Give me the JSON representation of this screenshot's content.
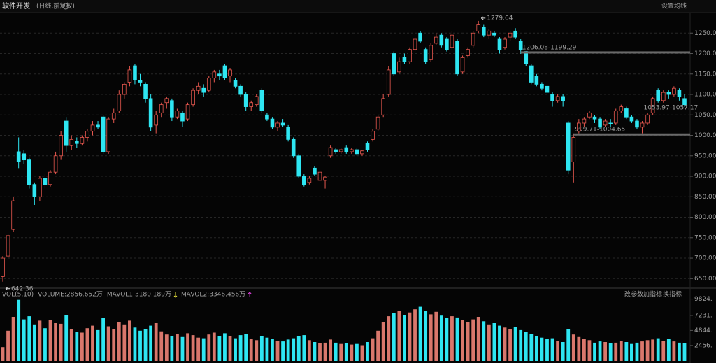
{
  "chart_data": [
    {
      "type": "candlestick",
      "title": "软件开发",
      "subtitle": "(日线,前复权)",
      "up_color": "#e8584f",
      "down_color": "#2ee6f2",
      "grid": true,
      "ylim": [
        630,
        1300
      ],
      "yticks": [
        {
          "value": 650,
          "label": "650.00"
        },
        {
          "value": 700,
          "label": "700.00"
        },
        {
          "value": 750,
          "label": "750.00"
        },
        {
          "value": 800,
          "label": "800.00"
        },
        {
          "value": 850,
          "label": "850.00"
        },
        {
          "value": 900,
          "label": "900.00"
        },
        {
          "value": 950,
          "label": "950.00"
        },
        {
          "value": 1000,
          "label": "1000.00"
        },
        {
          "value": 1050,
          "label": "1050.00"
        },
        {
          "value": 1100,
          "label": "1100.00"
        },
        {
          "value": 1150,
          "label": "1150.00"
        },
        {
          "value": 1200,
          "label": "1200.00"
        },
        {
          "value": 1250,
          "label": "1250.00"
        }
      ],
      "open": [
        655,
        705,
        770,
        960,
        955,
        940,
        880,
        850,
        895,
        880,
        910,
        950,
        1035,
        975,
        985,
        980,
        995,
        1010,
        1025,
        1045,
        960,
        1040,
        1060,
        1100,
        1130,
        1170,
        1135,
        1125,
        1090,
        1025,
        1055,
        1080,
        1085,
        1045,
        1055,
        1040,
        1075,
        1110,
        1115,
        1110,
        1140,
        1150,
        1170,
        1145,
        1135,
        1120,
        1100,
        1070,
        1075,
        1110,
        1050,
        1040,
        1020,
        1030,
        1020,
        990,
        950,
        900,
        885,
        920,
        890,
        890,
        950,
        965,
        960,
        970,
        960,
        965,
        955,
        980,
        990,
        1015,
        1050,
        1100,
        1200,
        1155,
        1190,
        1180,
        1210,
        1250,
        1210,
        1185,
        1225,
        1245,
        1235,
        1215,
        1230,
        1155,
        1195,
        1220,
        1255,
        1265,
        1245,
        1250,
        1235,
        1215,
        1240,
        1255,
        1230,
        1205,
        1170,
        1145,
        1125,
        1120,
        1100,
        1085,
        1095,
        1030,
        935,
        1010,
        1030,
        1045,
        1045,
        1040,
        1025,
        1030,
        1030,
        1060,
        1065,
        1045,
        1035,
        1020,
        1030,
        1055,
        1110,
        1085,
        1105,
        1100,
        1110,
        1090
      ],
      "high": [
        705,
        760,
        850,
        995,
        965,
        945,
        885,
        900,
        905,
        915,
        960,
        1010,
        1045,
        1000,
        995,
        1000,
        1015,
        1035,
        1035,
        1050,
        1045,
        1065,
        1110,
        1130,
        1170,
        1175,
        1150,
        1130,
        1100,
        1060,
        1080,
        1095,
        1090,
        1065,
        1060,
        1080,
        1115,
        1130,
        1125,
        1145,
        1160,
        1160,
        1175,
        1165,
        1140,
        1125,
        1105,
        1085,
        1100,
        1115,
        1055,
        1045,
        1035,
        1040,
        1025,
        995,
        955,
        905,
        900,
        925,
        920,
        900,
        975,
        970,
        968,
        975,
        970,
        970,
        965,
        985,
        1015,
        1050,
        1100,
        1170,
        1205,
        1190,
        1200,
        1215,
        1240,
        1255,
        1215,
        1225,
        1250,
        1250,
        1240,
        1255,
        1235,
        1195,
        1215,
        1255,
        1279.64,
        1270,
        1260,
        1255,
        1240,
        1240,
        1255,
        1262,
        1235,
        1206,
        1175,
        1150,
        1130,
        1125,
        1105,
        1100,
        1100,
        1035,
        1004.65,
        1040,
        1045,
        1060,
        1050,
        1045,
        1040,
        1040,
        1065,
        1075,
        1070,
        1050,
        1040,
        1035,
        1055,
        1095,
        1115,
        1110,
        1110,
        1120,
        1115,
        1100
      ],
      "low": [
        642.36,
        700,
        765,
        920,
        930,
        870,
        830,
        840,
        870,
        875,
        905,
        940,
        960,
        965,
        970,
        975,
        985,
        1000,
        1015,
        955,
        955,
        1030,
        1055,
        1090,
        1120,
        1125,
        1120,
        1080,
        1010,
        1005,
        1045,
        1065,
        1035,
        1040,
        1020,
        1035,
        1070,
        1100,
        1095,
        1105,
        1130,
        1135,
        1135,
        1130,
        1115,
        1095,
        1060,
        1060,
        1070,
        1055,
        1035,
        1015,
        1010,
        1020,
        985,
        945,
        895,
        875,
        880,
        900,
        880,
        870,
        945,
        955,
        955,
        955,
        955,
        950,
        950,
        960,
        985,
        1010,
        1045,
        1095,
        1145,
        1150,
        1175,
        1175,
        1205,
        1225,
        1175,
        1180,
        1220,
        1215,
        1205,
        1210,
        1145,
        1150,
        1190,
        1215,
        1250,
        1240,
        1235,
        1240,
        1200,
        1210,
        1230,
        1235,
        1199.29,
        1170,
        1125,
        1120,
        1110,
        1100,
        1070,
        1080,
        1070,
        905,
        885,
        1005,
        1020,
        1040,
        1030,
        1015,
        1020,
        1020,
        1025,
        1055,
        1040,
        1030,
        1015,
        1005,
        1025,
        1050,
        1080,
        1080,
        1090,
        1095,
        1085,
        1070
      ],
      "close": [
        700,
        755,
        840,
        935,
        940,
        880,
        850,
        895,
        880,
        910,
        950,
        1000,
        975,
        990,
        980,
        995,
        1010,
        1025,
        1020,
        960,
        1040,
        1055,
        1100,
        1125,
        1160,
        1135,
        1130,
        1090,
        1020,
        1050,
        1075,
        1090,
        1045,
        1060,
        1035,
        1075,
        1110,
        1120,
        1105,
        1140,
        1155,
        1145,
        1140,
        1160,
        1120,
        1100,
        1070,
        1080,
        1095,
        1060,
        1040,
        1020,
        1030,
        1025,
        990,
        950,
        900,
        880,
        895,
        905,
        910,
        898,
        970,
        960,
        965,
        960,
        965,
        955,
        962,
        965,
        1010,
        1045,
        1090,
        1160,
        1150,
        1180,
        1180,
        1210,
        1235,
        1230,
        1180,
        1220,
        1240,
        1220,
        1210,
        1245,
        1150,
        1190,
        1210,
        1250,
        1270,
        1245,
        1255,
        1245,
        1210,
        1235,
        1250,
        1240,
        1210,
        1175,
        1130,
        1125,
        1115,
        1105,
        1085,
        1095,
        1085,
        915,
        995,
        1030,
        1040,
        1055,
        1040,
        1020,
        1035,
        1028,
        1060,
        1070,
        1045,
        1035,
        1020,
        1030,
        1050,
        1090,
        1085,
        1105,
        1100,
        1115,
        1095,
        1075
      ],
      "zones": [
        {
          "label": "1206.08-1199.29",
          "values": [
            1206.08,
            1199.29
          ],
          "band": true
        },
        {
          "label": "999.71-1004.65",
          "values": [
            999.71,
            1004.65
          ],
          "band": true
        },
        {
          "label": "1053.97-1057.17",
          "values": [
            1053.97,
            1057.17
          ],
          "band": false
        }
      ]
    },
    {
      "type": "bar",
      "legend": [
        {
          "label": "VOL(5,10)",
          "color": "#9a9a9a"
        },
        {
          "label": "VOLUME:2856.652万",
          "color": "#e6e6e6"
        },
        {
          "label": "MAVOL1:3180.189万",
          "color": "#e8e23a"
        },
        {
          "label": "MAVOL2:3346.456万",
          "color": "#e040e0"
        }
      ],
      "up_color": "#d9776c",
      "down_color": "#2ee6f2",
      "ylim": [
        0,
        11000
      ],
      "yticks": [
        {
          "value": 2456,
          "label": "2456."
        },
        {
          "value": 4844,
          "label": "4844."
        },
        {
          "value": 7231,
          "label": "7231."
        },
        {
          "value": 9824,
          "label": "9824."
        }
      ],
      "values": [
        2200,
        4800,
        7000,
        9700,
        6600,
        7100,
        5800,
        6400,
        5200,
        6500,
        6000,
        5900,
        7300,
        5100,
        4600,
        4500,
        5200,
        5600,
        4900,
        6800,
        5500,
        5000,
        6200,
        5800,
        6400,
        5300,
        4800,
        5100,
        5600,
        6000,
        4700,
        4200,
        3900,
        4300,
        3800,
        4400,
        4100,
        3700,
        3600,
        4200,
        4500,
        3900,
        4400,
        4000,
        3600,
        4100,
        4300,
        3500,
        3300,
        4000,
        3700,
        3500,
        3200,
        3100,
        3400,
        3600,
        3900,
        4100,
        3300,
        3000,
        2800,
        2900,
        3400,
        2900,
        2700,
        2800,
        2600,
        2700,
        2500,
        3000,
        3600,
        4800,
        6200,
        7100,
        7600,
        8000,
        7300,
        7700,
        8200,
        8600,
        7900,
        7400,
        7800,
        7200,
        6800,
        7100,
        6900,
        6500,
        6200,
        6600,
        7000,
        6300,
        5800,
        6000,
        5600,
        5300,
        5000,
        5400,
        4900,
        4600,
        4300,
        3900,
        3700,
        3500,
        3600,
        3200,
        3000,
        5000,
        4200,
        3800,
        3500,
        3300,
        2900,
        3100,
        3000,
        2800,
        2900,
        3200,
        3000,
        2700,
        2900,
        3100,
        3300,
        3400,
        3600,
        3200,
        3500,
        3100,
        2900,
        2856.652
      ]
    }
  ],
  "header": {
    "settings": "设置均线"
  },
  "indicator_buttons": [
    "改参数",
    "加指标",
    "换指标"
  ]
}
